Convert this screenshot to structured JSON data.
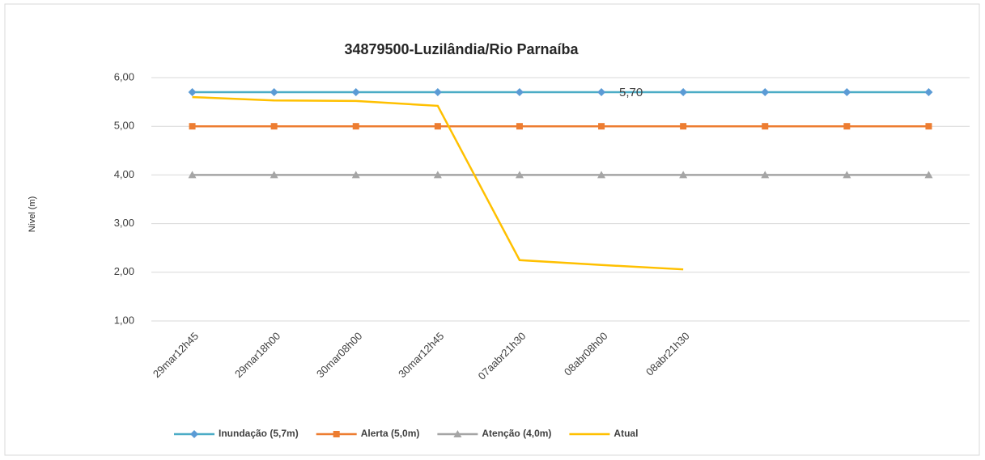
{
  "chart_data": {
    "type": "line",
    "title": "34879500-Luzilândia/Rio Parnaíba",
    "ylabel": "Nível (m)",
    "categories": [
      "29mar12h45",
      "29mar18h00",
      "30mar08h00",
      "30mar12h45",
      "07aabr21h30",
      "08abr08h00",
      "08abr21h30",
      null,
      null,
      null
    ],
    "series": [
      {
        "name": "Inundação (5,7m)",
        "color": "#4bacc6",
        "marker_color": "#5b9bd5",
        "marker": "diamond",
        "values": [
          5.7,
          5.7,
          5.7,
          5.7,
          5.7,
          5.7,
          5.7,
          5.7,
          5.7,
          5.7
        ],
        "value_labels": [
          null,
          null,
          null,
          null,
          null,
          "5,70",
          null,
          null,
          null,
          null
        ]
      },
      {
        "name": "Alerta (5,0m)",
        "color": "#ed7d31",
        "marker_color": "#ed7d31",
        "marker": "square",
        "values": [
          5.0,
          5.0,
          5.0,
          5.0,
          5.0,
          5.0,
          5.0,
          5.0,
          5.0,
          5.0
        ]
      },
      {
        "name": "Atenção (4,0m)",
        "color": "#a5a5a5",
        "marker_color": "#a5a5a5",
        "marker": "triangle",
        "values": [
          4.0,
          4.0,
          4.0,
          4.0,
          4.0,
          4.0,
          4.0,
          4.0,
          4.0,
          4.0
        ]
      },
      {
        "name": "Atual",
        "color": "#ffc000",
        "marker": "none",
        "values": [
          5.6,
          5.53,
          5.52,
          5.42,
          2.25,
          2.15,
          2.06,
          null,
          null,
          null
        ]
      }
    ],
    "ylim": [
      1,
      6
    ],
    "yticks": [
      {
        "value": 1,
        "label": "1,00"
      },
      {
        "value": 2,
        "label": "2,00"
      },
      {
        "value": 3,
        "label": "3,00"
      },
      {
        "value": 4,
        "label": "4,00"
      },
      {
        "value": 5,
        "label": "5,00"
      },
      {
        "value": 6,
        "label": "6,00"
      }
    ],
    "grid": true,
    "legend": "bottom"
  }
}
